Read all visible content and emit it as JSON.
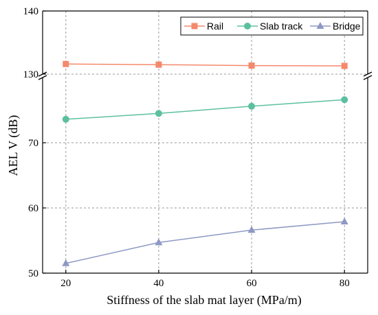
{
  "chart_data": {
    "type": "line",
    "xlabel": "Stiffness of the slab mat layer (MPa/m)",
    "ylabel": "AEL V (dB)",
    "x": [
      20,
      40,
      60,
      80
    ],
    "xlim": [
      15,
      85
    ],
    "xticks": [
      "20",
      "40",
      "60",
      "80"
    ],
    "y_axis_break": true,
    "y_segments": [
      {
        "range": [
          50,
          80
        ],
        "ticks": [
          "50",
          "60",
          "70"
        ]
      },
      {
        "range": [
          130,
          140
        ],
        "ticks": [
          "130",
          "140"
        ]
      }
    ],
    "grid": true,
    "legend_position": "top-right",
    "series": [
      {
        "name": "Rail",
        "marker": "square",
        "color": "#F4896B",
        "values": [
          131.6,
          131.5,
          131.35,
          131.3
        ]
      },
      {
        "name": "Slab track",
        "marker": "circle",
        "color": "#5BC0A0",
        "values": [
          73.6,
          74.5,
          75.6,
          76.6
        ]
      },
      {
        "name": "Bridge",
        "marker": "triangle",
        "color": "#8E98C4",
        "values": [
          51.5,
          54.7,
          56.6,
          57.9
        ]
      }
    ]
  }
}
